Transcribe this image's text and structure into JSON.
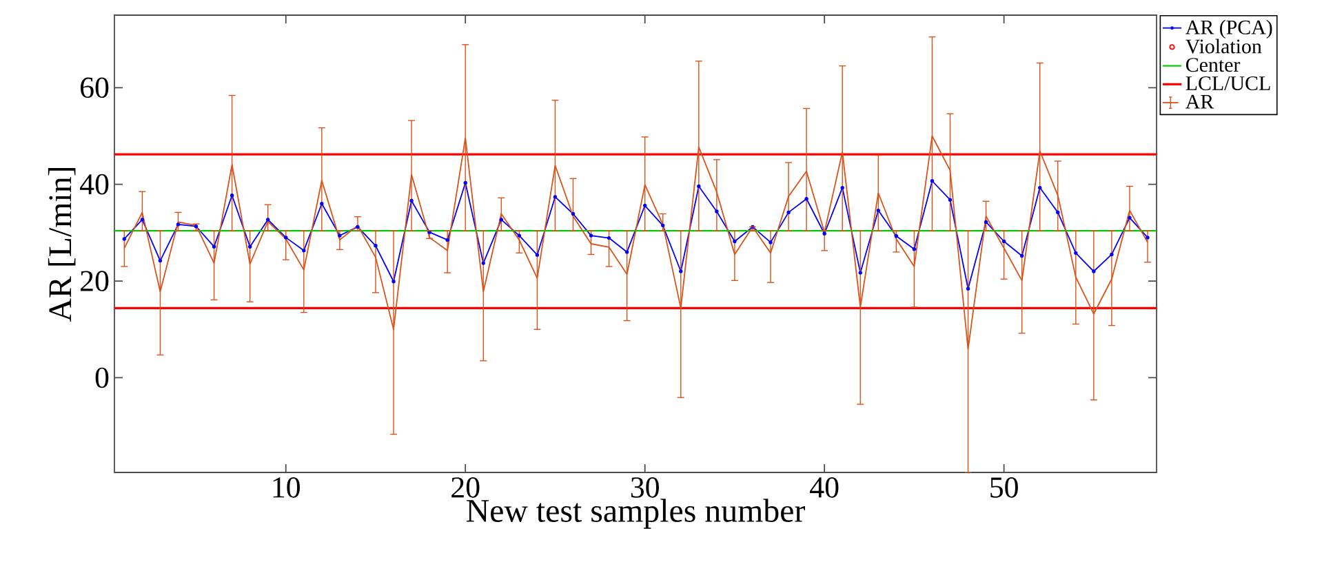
{
  "chart_data": {
    "type": "line",
    "xlabel": "New test samples number",
    "ylabel": "AR [L/min]",
    "x": [
      1,
      2,
      3,
      4,
      5,
      6,
      7,
      8,
      9,
      10,
      11,
      12,
      13,
      14,
      15,
      16,
      17,
      18,
      19,
      20,
      21,
      22,
      23,
      24,
      25,
      26,
      27,
      28,
      29,
      30,
      31,
      32,
      33,
      34,
      35,
      36,
      37,
      38,
      39,
      40,
      41,
      42,
      43,
      44,
      45,
      46,
      47,
      48,
      49,
      50,
      51,
      52,
      53,
      54,
      55,
      56,
      57,
      58
    ],
    "xlim": [
      0.45,
      58.5
    ],
    "xticks": [
      10,
      20,
      30,
      40,
      50
    ],
    "ylim": [
      -19.6,
      75
    ],
    "yticks": [
      0,
      20,
      40,
      60
    ],
    "grid": false,
    "legend": "top right",
    "series": [
      {
        "name": "AR (PCA)",
        "color": "#0000ff",
        "marker": "circle",
        "values": [
          28.7,
          32.7,
          24.2,
          31.7,
          31.3,
          27.1,
          37.7,
          27.1,
          32.7,
          29.0,
          26.3,
          36.0,
          29.4,
          31.2,
          27.3,
          19.9,
          36.6,
          30.1,
          28.5,
          40.3,
          23.7,
          32.7,
          29.4,
          25.4,
          37.4,
          33.9,
          29.4,
          28.9,
          26.0,
          35.6,
          31.5,
          22.0,
          39.6,
          34.4,
          28.2,
          31.2,
          28.0,
          34.2,
          37.0,
          29.8,
          39.3,
          21.7,
          34.6,
          29.3,
          26.6,
          40.7,
          36.8,
          18.4,
          32.2,
          28.2,
          25.2,
          39.3,
          34.2,
          25.8,
          22.0,
          25.5,
          33.1,
          29.0
        ]
      },
      {
        "name": "Violation",
        "type": "scatter",
        "color": "#ff0000",
        "marker": "circle",
        "values": [
          null,
          null,
          null,
          null,
          null,
          null,
          null,
          null,
          null,
          null,
          null,
          null,
          null,
          null,
          null,
          null,
          null,
          null,
          null,
          null,
          null,
          null,
          null,
          null,
          null,
          null,
          null,
          null,
          null,
          null,
          null,
          null,
          null,
          null,
          null,
          null,
          null,
          null,
          null,
          null,
          null,
          null,
          null,
          null,
          null,
          null,
          null,
          null,
          null,
          null,
          null,
          null,
          null,
          null,
          null,
          null,
          null,
          null
        ]
      },
      {
        "name": "AR",
        "color": "#d95319",
        "values": [
          26.8,
          34.2,
          17.8,
          32.2,
          31.5,
          23.7,
          44.1,
          23.5,
          32.3,
          28.7,
          22.3,
          40.8,
          28.5,
          31.5,
          24.9,
          10.0,
          42.0,
          29.0,
          26.3,
          49.6,
          17.8,
          33.9,
          28.5,
          20.6,
          43.9,
          33.4,
          27.7,
          27.0,
          21.4,
          39.9,
          31.7,
          14.4,
          47.7,
          38.4,
          25.5,
          31.2,
          25.8,
          37.5,
          42.7,
          30.1,
          46.7,
          14.6,
          38.2,
          28.7,
          23.0,
          50.0,
          42.9,
          5.9,
          33.4,
          26.8,
          20.1,
          46.9,
          37.7,
          20.8,
          13.2,
          20.4,
          34.6,
          28.0
        ],
        "errors": [
          [
            23.0,
            30.4
          ],
          [
            30.4,
            38.5
          ],
          [
            4.7,
            30.4
          ],
          [
            30.4,
            34.2
          ],
          [
            30.4,
            31.8
          ],
          [
            16.1,
            30.4
          ],
          [
            30.4,
            58.4
          ],
          [
            15.7,
            30.4
          ],
          [
            30.4,
            35.8
          ],
          [
            24.4,
            30.4
          ],
          [
            13.5,
            30.4
          ],
          [
            30.4,
            51.7
          ],
          [
            26.5,
            30.4
          ],
          [
            30.4,
            33.3
          ],
          [
            17.6,
            30.4
          ],
          [
            -11.7,
            30.4
          ],
          [
            30.4,
            53.2
          ],
          [
            28.8,
            30.4
          ],
          [
            21.7,
            30.4
          ],
          [
            30.4,
            68.9
          ],
          [
            3.5,
            30.4
          ],
          [
            30.4,
            37.2
          ],
          [
            25.8,
            30.4
          ],
          [
            10.0,
            30.4
          ],
          [
            30.4,
            57.4
          ],
          [
            30.4,
            41.2
          ],
          [
            25.5,
            30.4
          ],
          [
            23.0,
            30.4
          ],
          [
            11.8,
            30.4
          ],
          [
            30.4,
            49.8
          ],
          [
            30.4,
            33.9
          ],
          [
            -4.1,
            30.4
          ],
          [
            30.4,
            65.5
          ],
          [
            30.4,
            45.1
          ],
          [
            20.1,
            30.4
          ],
          [
            30.4,
            31.2
          ],
          [
            19.7,
            30.4
          ],
          [
            30.4,
            44.5
          ],
          [
            30.4,
            55.7
          ],
          [
            26.3,
            30.4
          ],
          [
            30.4,
            64.5
          ],
          [
            -5.5,
            30.4
          ],
          [
            30.4,
            46.0
          ],
          [
            26.0,
            30.4
          ],
          [
            14.6,
            30.4
          ],
          [
            30.4,
            70.5
          ],
          [
            30.4,
            54.6
          ],
          [
            -19.6,
            30.4
          ],
          [
            30.4,
            36.5
          ],
          [
            20.4,
            30.4
          ],
          [
            9.2,
            30.4
          ],
          [
            30.4,
            65.1
          ],
          [
            30.4,
            44.8
          ],
          [
            11.1,
            30.4
          ],
          [
            -4.6,
            30.4
          ],
          [
            10.8,
            30.4
          ],
          [
            30.4,
            39.6
          ],
          [
            23.9,
            30.4
          ]
        ]
      }
    ],
    "ref_lines": [
      {
        "axis": "y",
        "value": 30.4,
        "label": "Center",
        "color": "#00cc00"
      },
      {
        "axis": "y",
        "value": 46.2,
        "label": "LCL/UCL",
        "color": "#ff0000"
      },
      {
        "axis": "y",
        "value": 14.4,
        "color": "#ff0000"
      }
    ]
  }
}
